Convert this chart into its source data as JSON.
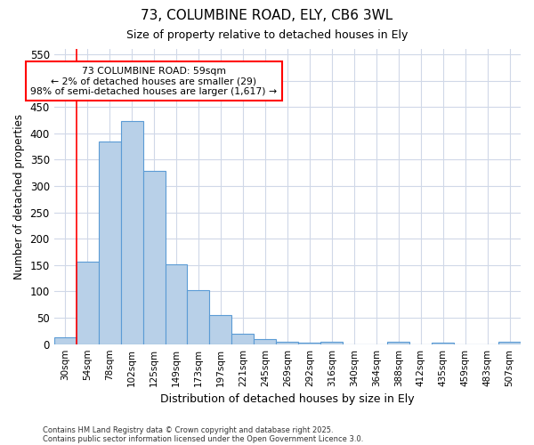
{
  "title_line1": "73, COLUMBINE ROAD, ELY, CB6 3WL",
  "title_line2": "Size of property relative to detached houses in Ely",
  "xlabel": "Distribution of detached houses by size in Ely",
  "ylabel": "Number of detached properties",
  "categories": [
    "30sqm",
    "54sqm",
    "78sqm",
    "102sqm",
    "125sqm",
    "149sqm",
    "173sqm",
    "197sqm",
    "221sqm",
    "245sqm",
    "269sqm",
    "292sqm",
    "316sqm",
    "340sqm",
    "364sqm",
    "388sqm",
    "412sqm",
    "435sqm",
    "459sqm",
    "483sqm",
    "507sqm"
  ],
  "values": [
    13,
    157,
    384,
    424,
    329,
    152,
    102,
    55,
    19,
    10,
    5,
    3,
    5,
    0,
    0,
    4,
    0,
    3,
    0,
    0,
    4
  ],
  "bar_color": "#b8d0e8",
  "bar_edge_color": "#5b9bd5",
  "background_color": "#ffffff",
  "fig_background_color": "#ffffff",
  "grid_color": "#d0d8e8",
  "ylim": [
    0,
    560
  ],
  "yticks": [
    0,
    50,
    100,
    150,
    200,
    250,
    300,
    350,
    400,
    450,
    500,
    550
  ],
  "vline_x_index": 1,
  "annotation_text": "73 COLUMBINE ROAD: 59sqm\n← 2% of detached houses are smaller (29)\n98% of semi-detached houses are larger (1,617) →",
  "footer_line1": "Contains HM Land Registry data © Crown copyright and database right 2025.",
  "footer_line2": "Contains public sector information licensed under the Open Government Licence 3.0."
}
